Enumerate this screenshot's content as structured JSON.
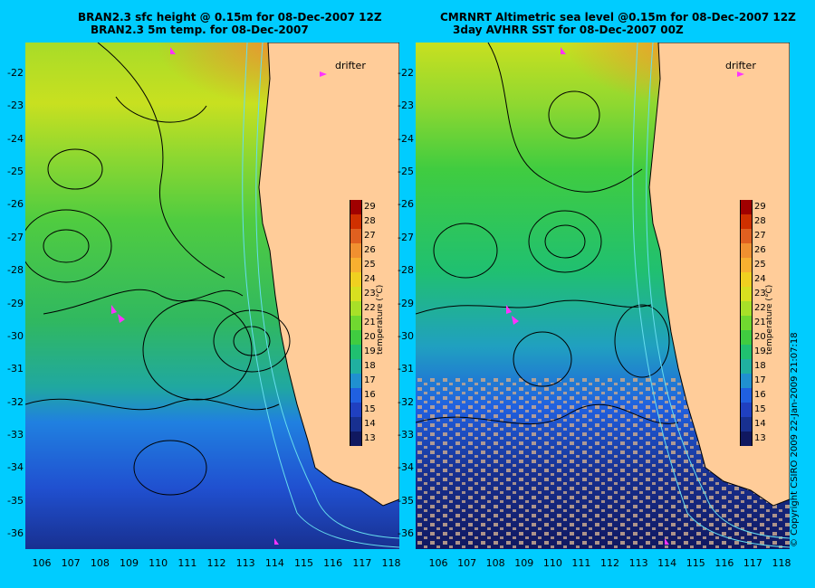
{
  "left_panel": {
    "title_line1": "BRAN2.3 sfc height @ 0.15m for 08-Dec-2007 12Z",
    "title_line2": "BRAN2.3 5m temp. for 08-Dec-2007"
  },
  "right_panel": {
    "title_line1": "CMRNRT Altimetric sea level  @0.15m  for 08-Dec-2007 12Z",
    "title_line2": "3day AVHRR SST for 08-Dec-2007 00Z"
  },
  "map": {
    "lat_ticks": [
      "-22",
      "-23",
      "-24",
      "-25",
      "-26",
      "-27",
      "-28",
      "-29",
      "-30",
      "-31",
      "-32",
      "-33",
      "-34",
      "-35",
      "-36"
    ],
    "lon_ticks": [
      "106",
      "107",
      "108",
      "109",
      "110",
      "111",
      "112",
      "113",
      "114",
      "115",
      "116",
      "117",
      "118"
    ],
    "lat_range": [
      -36.5,
      -21.3
    ],
    "lon_range": [
      105.3,
      118.3
    ],
    "drifter_label": "drifter",
    "land_color": "#ffcc99",
    "coastline_color": "#000000",
    "contour_color": "#000000",
    "bathymetry_color": "#66ddee",
    "drifter_color": "#ff33ff"
  },
  "colorbar": {
    "values": [
      "29",
      "28",
      "27",
      "26",
      "25",
      "24",
      "23",
      "22",
      "21",
      "20",
      "19",
      "18",
      "17",
      "16",
      "15",
      "14",
      "13"
    ],
    "colors": [
      "#a00000",
      "#d03000",
      "#e06020",
      "#f09030",
      "#f8b030",
      "#f0d020",
      "#d8e020",
      "#a8e028",
      "#70d830",
      "#40cc40",
      "#20c070",
      "#20b0a0",
      "#2090d0",
      "#2060e0",
      "#2040c0",
      "#183090",
      "#101860"
    ],
    "unit_label": "temperature (°C)"
  },
  "copyright": "© Copyright CSIRO 2009  22-Jan-2009 21:07:18"
}
